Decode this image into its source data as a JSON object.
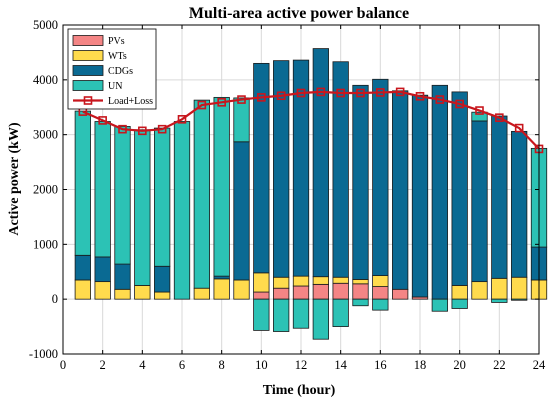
{
  "chart_data": {
    "type": "bar",
    "title": "Multi-area active power balance",
    "xlabel": "Time (hour)",
    "ylabel": "Active power (kW)",
    "xlim": [
      0,
      24
    ],
    "ylim": [
      -1000,
      5000
    ],
    "xticks": [
      0,
      2,
      4,
      6,
      8,
      10,
      12,
      14,
      16,
      18,
      20,
      22,
      24
    ],
    "yticks": [
      -1000,
      0,
      1000,
      2000,
      3000,
      4000,
      5000
    ],
    "grid": true,
    "legend_position": "top-left",
    "x": [
      1,
      2,
      3,
      4,
      5,
      6,
      7,
      8,
      9,
      10,
      11,
      12,
      13,
      14,
      15,
      16,
      17,
      18,
      19,
      20,
      21,
      22,
      23,
      24
    ],
    "stack_order": [
      "PVs",
      "WTs",
      "CDGs",
      "UN"
    ],
    "series": [
      {
        "name": "PVs",
        "kind": "bar",
        "color": "#f48585",
        "values": [
          0,
          0,
          0,
          0,
          0,
          0,
          0,
          0,
          0,
          130,
          200,
          240,
          270,
          290,
          280,
          230,
          180,
          40,
          0,
          0,
          0,
          0,
          0,
          0
        ]
      },
      {
        "name": "WTs",
        "kind": "bar",
        "color": "#ffdb4d",
        "values": [
          350,
          320,
          180,
          250,
          130,
          0,
          200,
          370,
          350,
          350,
          200,
          180,
          140,
          110,
          80,
          200,
          0,
          0,
          0,
          250,
          320,
          380,
          400,
          350
        ]
      },
      {
        "name": "CDGs",
        "kind": "bar",
        "color": "#0a6a93",
        "values": [
          450,
          450,
          460,
          0,
          470,
          0,
          0,
          50,
          2520,
          3820,
          3950,
          3940,
          4160,
          3930,
          3540,
          3580,
          3620,
          3680,
          3900,
          3530,
          2930,
          2960,
          2660,
          600
        ]
      },
      {
        "name": "UN",
        "kind": "bar",
        "color": "#2cc2b5",
        "values": [
          2630,
          2470,
          2510,
          2840,
          2520,
          3240,
          3430,
          3260,
          800,
          -570,
          -590,
          -530,
          -730,
          -500,
          -120,
          -200,
          0,
          0,
          -220,
          -170,
          160,
          -60,
          -20,
          1800
        ]
      },
      {
        "name": "Load+Loss",
        "kind": "line",
        "color": "#c8161d",
        "marker": "square",
        "values": [
          3420,
          3260,
          3100,
          3070,
          3100,
          3280,
          3540,
          3590,
          3640,
          3680,
          3710,
          3760,
          3780,
          3760,
          3760,
          3770,
          3780,
          3700,
          3640,
          3560,
          3440,
          3310,
          3120,
          2740
        ]
      }
    ]
  }
}
